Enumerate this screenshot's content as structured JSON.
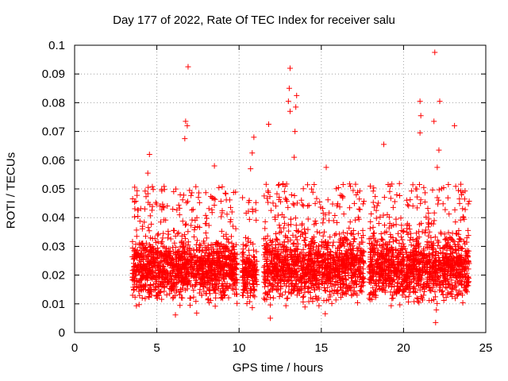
{
  "chart_data": {
    "type": "scatter",
    "title": "Day 177 of 2022, Rate Of TEC Index for receiver salu",
    "xlabel": "GPS time / hours",
    "ylabel": "ROTI / TECUs",
    "xlim": [
      0,
      25
    ],
    "ylim": [
      0,
      0.1
    ],
    "xticks": [
      "0",
      "5",
      "10",
      "15",
      "20",
      "25"
    ],
    "yticks": [
      "0",
      "0.01",
      "0.02",
      "0.03",
      "0.04",
      "0.05",
      "0.06",
      "0.07",
      "0.08",
      "0.09",
      "0.1"
    ],
    "grid": true,
    "marker": "+",
    "color": "#ff0000",
    "series": [
      {
        "segments": [
          {
            "x_start": 3.5,
            "x_end": 9.9,
            "band_low": 0.012,
            "band_high": 0.033
          },
          {
            "x_start": 10.2,
            "x_end": 11.1,
            "band_low": 0.012,
            "band_high": 0.03
          },
          {
            "x_start": 11.5,
            "x_end": 17.6,
            "band_low": 0.012,
            "band_high": 0.034
          },
          {
            "x_start": 17.9,
            "x_end": 24.0,
            "band_low": 0.012,
            "band_high": 0.034
          }
        ],
        "outliers": [
          {
            "x": 4.55,
            "y": 0.062
          },
          {
            "x": 4.45,
            "y": 0.0555
          },
          {
            "x": 6.9,
            "y": 0.0925
          },
          {
            "x": 6.75,
            "y": 0.0735
          },
          {
            "x": 6.85,
            "y": 0.072
          },
          {
            "x": 6.7,
            "y": 0.0675
          },
          {
            "x": 8.5,
            "y": 0.058
          },
          {
            "x": 10.9,
            "y": 0.068
          },
          {
            "x": 10.8,
            "y": 0.0625
          },
          {
            "x": 10.7,
            "y": 0.057
          },
          {
            "x": 11.8,
            "y": 0.0725
          },
          {
            "x": 11.9,
            "y": 0.005
          },
          {
            "x": 13.1,
            "y": 0.092
          },
          {
            "x": 13.05,
            "y": 0.085
          },
          {
            "x": 13.0,
            "y": 0.0805
          },
          {
            "x": 13.1,
            "y": 0.077
          },
          {
            "x": 13.5,
            "y": 0.0825
          },
          {
            "x": 13.45,
            "y": 0.0785
          },
          {
            "x": 13.4,
            "y": 0.07
          },
          {
            "x": 13.35,
            "y": 0.061
          },
          {
            "x": 14.2,
            "y": 0.0395
          },
          {
            "x": 15.3,
            "y": 0.0575
          },
          {
            "x": 18.8,
            "y": 0.0655
          },
          {
            "x": 21.0,
            "y": 0.0805
          },
          {
            "x": 21.05,
            "y": 0.0755
          },
          {
            "x": 21.0,
            "y": 0.0695
          },
          {
            "x": 21.9,
            "y": 0.0975
          },
          {
            "x": 21.85,
            "y": 0.0735
          },
          {
            "x": 22.2,
            "y": 0.0805
          },
          {
            "x": 22.15,
            "y": 0.0635
          },
          {
            "x": 22.05,
            "y": 0.0575
          },
          {
            "x": 23.1,
            "y": 0.072
          },
          {
            "x": 21.95,
            "y": 0.0035
          }
        ]
      }
    ]
  }
}
